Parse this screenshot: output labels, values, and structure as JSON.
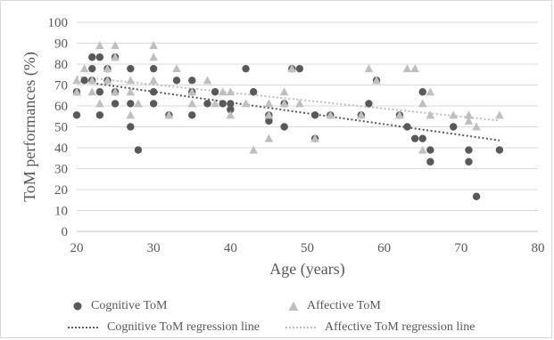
{
  "chart_data": {
    "type": "scatter",
    "xlabel": "Age (years)",
    "ylabel": "ToM performances (%)",
    "xlim": [
      20,
      80
    ],
    "ylim": [
      0,
      100
    ],
    "xticks": [
      "20",
      "30",
      "40",
      "50",
      "60",
      "70",
      "80"
    ],
    "yticks": [
      "0",
      "10",
      "20",
      "30",
      "40",
      "50",
      "60",
      "70",
      "80",
      "90",
      "100"
    ],
    "grid": "horizontal",
    "legend_position": "bottom",
    "series": [
      {
        "name": "Cognitive ToM",
        "marker": "circle",
        "color": "#595959",
        "points": [
          [
            20,
            55.6
          ],
          [
            20,
            66.7
          ],
          [
            21,
            72.2
          ],
          [
            22,
            72.2
          ],
          [
            22,
            77.8
          ],
          [
            22,
            83.3
          ],
          [
            23,
            83.3
          ],
          [
            23,
            66.7
          ],
          [
            23,
            55.6
          ],
          [
            24,
            77.8
          ],
          [
            24,
            72.2
          ],
          [
            25,
            83.3
          ],
          [
            25,
            66.7
          ],
          [
            25,
            61.1
          ],
          [
            27,
            77.8
          ],
          [
            27,
            61.1
          ],
          [
            27,
            50.0
          ],
          [
            28,
            38.9
          ],
          [
            30,
            77.8
          ],
          [
            30,
            66.7
          ],
          [
            30,
            61.1
          ],
          [
            32,
            55.6
          ],
          [
            33,
            72.2
          ],
          [
            35,
            72.2
          ],
          [
            35,
            66.7
          ],
          [
            35,
            55.6
          ],
          [
            37,
            61.1
          ],
          [
            38,
            66.7
          ],
          [
            39,
            61.1
          ],
          [
            40,
            61.1
          ],
          [
            40,
            58.3
          ],
          [
            42,
            77.8
          ],
          [
            43,
            66.7
          ],
          [
            45,
            55.6
          ],
          [
            45,
            52.8
          ],
          [
            47,
            61.1
          ],
          [
            47,
            50.0
          ],
          [
            48,
            77.8
          ],
          [
            49,
            77.8
          ],
          [
            51,
            55.6
          ],
          [
            51,
            44.4
          ],
          [
            53,
            55.6
          ],
          [
            57,
            55.6
          ],
          [
            58,
            61.1
          ],
          [
            59,
            72.2
          ],
          [
            62,
            55.6
          ],
          [
            63,
            50.0
          ],
          [
            64,
            44.4
          ],
          [
            65,
            66.7
          ],
          [
            65,
            44.4
          ],
          [
            66,
            38.9
          ],
          [
            66,
            33.3
          ],
          [
            69,
            50.0
          ],
          [
            71,
            38.9
          ],
          [
            71,
            33.3
          ],
          [
            72,
            16.7
          ],
          [
            75,
            38.9
          ]
        ]
      },
      {
        "name": "Affective ToM",
        "marker": "triangle",
        "color": "#bfbfbf",
        "points": [
          [
            20,
            72.2
          ],
          [
            20,
            66.7
          ],
          [
            21,
            77.8
          ],
          [
            22,
            72.2
          ],
          [
            22,
            66.7
          ],
          [
            23,
            88.9
          ],
          [
            23,
            61.1
          ],
          [
            24,
            77.8
          ],
          [
            24,
            72.2
          ],
          [
            25,
            88.9
          ],
          [
            25,
            83.3
          ],
          [
            25,
            66.7
          ],
          [
            27,
            72.2
          ],
          [
            27,
            66.7
          ],
          [
            27,
            55.6
          ],
          [
            28,
            61.1
          ],
          [
            30,
            88.9
          ],
          [
            30,
            83.3
          ],
          [
            30,
            72.2
          ],
          [
            32,
            55.6
          ],
          [
            33,
            77.8
          ],
          [
            35,
            66.7
          ],
          [
            35,
            61.1
          ],
          [
            37,
            72.2
          ],
          [
            38,
            61.1
          ],
          [
            39,
            66.7
          ],
          [
            40,
            66.7
          ],
          [
            40,
            55.6
          ],
          [
            42,
            61.1
          ],
          [
            43,
            38.9
          ],
          [
            45,
            61.1
          ],
          [
            45,
            55.6
          ],
          [
            45,
            44.4
          ],
          [
            47,
            66.7
          ],
          [
            47,
            61.1
          ],
          [
            48,
            77.8
          ],
          [
            49,
            61.1
          ],
          [
            51,
            44.4
          ],
          [
            53,
            55.6
          ],
          [
            57,
            55.6
          ],
          [
            58,
            77.8
          ],
          [
            59,
            72.2
          ],
          [
            62,
            55.6
          ],
          [
            63,
            77.8
          ],
          [
            64,
            77.8
          ],
          [
            65,
            61.1
          ],
          [
            65,
            38.9
          ],
          [
            66,
            66.7
          ],
          [
            66,
            55.6
          ],
          [
            69,
            55.6
          ],
          [
            71,
            55.6
          ],
          [
            71,
            52.8
          ],
          [
            72,
            50.0
          ],
          [
            75,
            55.6
          ]
        ]
      },
      {
        "name": "Cognitive ToM regression line",
        "style": "dotted",
        "color": "#595959",
        "points": [
          [
            20,
            72.0
          ],
          [
            75,
            43.5
          ]
        ]
      },
      {
        "name": "Affective ToM regression line",
        "style": "dotted",
        "color": "#bfbfbf",
        "points": [
          [
            20,
            74.0
          ],
          [
            75,
            53.0
          ]
        ]
      }
    ]
  }
}
